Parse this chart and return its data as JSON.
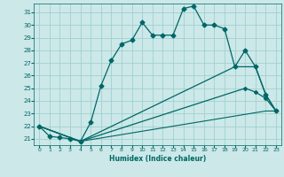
{
  "xlabel": "Humidex (Indice chaleur)",
  "background_color": "#cce8e8",
  "grid_color": "#99cccc",
  "line_color": "#006666",
  "xlim": [
    -0.5,
    23.5
  ],
  "ylim": [
    20.5,
    31.7
  ],
  "yticks": [
    21,
    22,
    23,
    24,
    25,
    26,
    27,
    28,
    29,
    30,
    31
  ],
  "xticks": [
    0,
    1,
    2,
    3,
    4,
    5,
    6,
    7,
    8,
    9,
    10,
    11,
    12,
    13,
    14,
    15,
    16,
    17,
    18,
    19,
    20,
    21,
    22,
    23
  ],
  "series": [
    {
      "x": [
        0,
        1,
        2,
        3,
        4,
        5,
        6,
        7,
        8,
        9,
        10,
        11,
        12,
        13,
        14,
        15,
        16,
        17,
        18,
        19,
        20,
        21,
        22,
        23
      ],
      "y": [
        22.0,
        21.2,
        21.1,
        21.0,
        20.8,
        22.3,
        25.2,
        27.2,
        28.5,
        28.8,
        30.2,
        29.2,
        29.2,
        29.2,
        31.3,
        31.5,
        30.0,
        30.0,
        29.7,
        26.7,
        28.0,
        26.7,
        24.5,
        23.2
      ],
      "marker": "D",
      "markersize": 2.5,
      "linewidth": 0.9
    },
    {
      "x": [
        0,
        4,
        19,
        21,
        22,
        23
      ],
      "y": [
        22.0,
        20.8,
        26.7,
        26.7,
        24.5,
        23.2
      ],
      "marker": null,
      "markersize": 0,
      "linewidth": 0.9
    },
    {
      "x": [
        0,
        4,
        20,
        21,
        22,
        23
      ],
      "y": [
        22.0,
        20.8,
        25.0,
        24.7,
        24.2,
        23.2
      ],
      "marker": "D",
      "markersize": 2.0,
      "linewidth": 0.9
    },
    {
      "x": [
        0,
        4,
        22,
        23
      ],
      "y": [
        22.0,
        20.8,
        23.2,
        23.2
      ],
      "marker": null,
      "markersize": 0,
      "linewidth": 0.8
    }
  ]
}
